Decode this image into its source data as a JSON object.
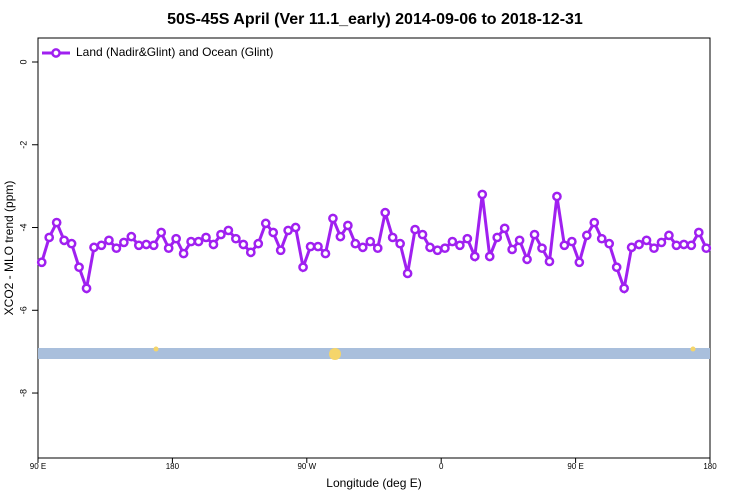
{
  "chart_data": {
    "type": "line",
    "title": "50S-45S April (Ver 11.1_early)   2014-09-06 to 2018-12-31",
    "xlabel": "Longitude (deg E)",
    "ylabel": "XCO2 - MLO trend (ppm)",
    "x": [
      92.5,
      97.5,
      102.5,
      107.5,
      112.5,
      117.5,
      122.5,
      127.5,
      132.5,
      137.5,
      142.5,
      147.5,
      152.5,
      157.5,
      162.5,
      167.5,
      172.5,
      177.5,
      182.5,
      187.5,
      192.5,
      197.5,
      202.5,
      207.5,
      212.5,
      217.5,
      222.5,
      227.5,
      232.5,
      237.5,
      242.5,
      247.5,
      252.5,
      257.5,
      262.5,
      267.5,
      272.5,
      277.5,
      282.5,
      287.5,
      292.5,
      297.5,
      302.5,
      307.5,
      312.5,
      317.5,
      322.5,
      327.5,
      332.5,
      337.5,
      342.5,
      347.5,
      352.5,
      357.5,
      362.5,
      367.5,
      372.5,
      377.5,
      382.5,
      387.5,
      392.5,
      397.5,
      402.5,
      407.5,
      412.5,
      417.5,
      422.5,
      427.5,
      432.5,
      437.5,
      442.5,
      447.5,
      452.5,
      457.5,
      462.5,
      467.5,
      472.5,
      477.5,
      482.5,
      487.5,
      492.5,
      497.5,
      502.5,
      507.5,
      512.5,
      517.5,
      522.5,
      527.5,
      532.5,
      537.5
    ],
    "series": [
      {
        "name": "Land (Nadir&Glint) and Ocean (Glint)",
        "color": "#a020f0",
        "values": [
          -4.84,
          -4.24,
          -3.88,
          -4.31,
          -4.39,
          -4.96,
          -5.47,
          -4.48,
          -4.43,
          -4.31,
          -4.5,
          -4.36,
          -4.22,
          -4.43,
          -4.41,
          -4.43,
          -4.12,
          -4.5,
          -4.27,
          -4.63,
          -4.34,
          -4.34,
          -4.24,
          -4.41,
          -4.17,
          -4.07,
          -4.27,
          -4.41,
          -4.6,
          -4.39,
          -3.9,
          -4.12,
          -4.55,
          -4.07,
          -4.0,
          -4.96,
          -4.46,
          -4.46,
          -4.63,
          -3.78,
          -4.22,
          -3.95,
          -4.39,
          -4.48,
          -4.34,
          -4.5,
          -3.64,
          -4.24,
          -4.39,
          -5.11,
          -4.05,
          -4.17,
          -4.48,
          -4.55,
          -4.5,
          -4.34,
          -4.43,
          -4.27,
          -4.7,
          -3.2,
          -4.7,
          -4.24,
          -4.02,
          -4.53,
          -4.31,
          -4.77,
          -4.17,
          -4.5,
          -4.82,
          -3.25,
          -4.43,
          -4.34,
          -4.84,
          -4.19,
          -3.88,
          -4.27,
          -4.39,
          -4.96,
          -5.47,
          -4.48,
          -4.41,
          -4.31,
          -4.5,
          -4.36,
          -4.19,
          -4.43,
          -4.41,
          -4.43,
          -4.12,
          -4.5
        ]
      }
    ],
    "xlim": [
      90,
      540
    ],
    "xticks": [
      {
        "value": 90,
        "label": "90 E"
      },
      180,
      {
        "value": 270,
        "label": "90 W"
      },
      {
        "value": 360,
        "label": "0"
      },
      {
        "value": 450,
        "label": "90 E"
      },
      {
        "value": 540,
        "label": "180"
      }
    ],
    "ylim": [
      -9.57,
      0.58
    ],
    "yticks": [
      0,
      -2,
      -4,
      -6,
      -8
    ],
    "legend": "upper left"
  }
}
